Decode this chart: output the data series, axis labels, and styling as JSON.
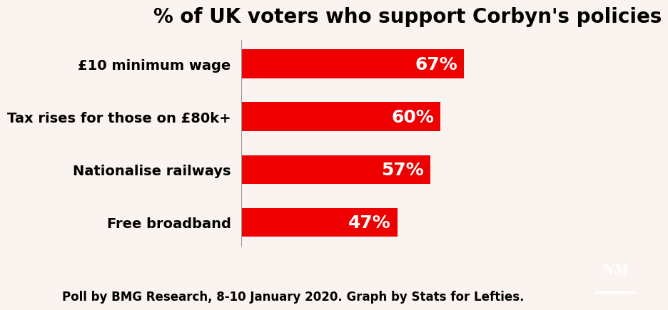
{
  "title": "% of UK voters who support Corbyn's policies",
  "categories": [
    "Free broadband",
    "Nationalise railways",
    "Tax rises for those on £80k+",
    "£10 minimum wage"
  ],
  "values": [
    47,
    57,
    60,
    67
  ],
  "labels": [
    "47%",
    "57%",
    "60%",
    "67%"
  ],
  "bar_color": "#ee0000",
  "background_color": "#faf3ef",
  "text_color": "#000000",
  "label_color": "#ffffff",
  "title_fontsize": 20,
  "category_fontsize": 14,
  "label_fontsize": 18,
  "footnote": "Poll by BMG Research, 8-10 January 2020. Graph by Stats for Lefties.",
  "footnote_fontsize": 12,
  "xlim": [
    0,
    100
  ],
  "bar_height": 0.55
}
